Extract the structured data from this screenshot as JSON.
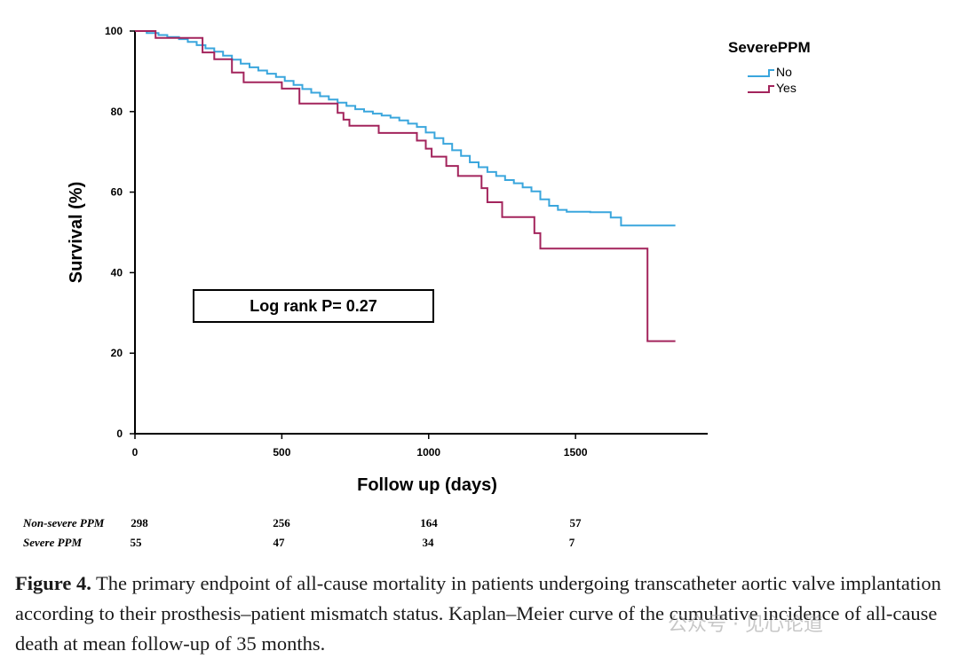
{
  "chart_data": {
    "type": "line",
    "subtype": "kaplan-meier step",
    "xlabel": "Follow up (days)",
    "ylabel": "Survival (%)",
    "xlim": [
      0,
      1950
    ],
    "ylim": [
      0,
      100
    ],
    "xticks": [
      0,
      500,
      1000,
      1500
    ],
    "yticks": [
      0,
      20,
      40,
      60,
      80,
      100
    ],
    "legend": {
      "title": "SeverePPM",
      "placement": "top-right"
    },
    "annotation": "Log rank P= 0.27",
    "series": [
      {
        "name": "No",
        "color": "#3aa6dd",
        "points": [
          [
            0,
            100
          ],
          [
            40,
            99.5
          ],
          [
            80,
            99
          ],
          [
            110,
            98.5
          ],
          [
            150,
            98
          ],
          [
            180,
            97.3
          ],
          [
            210,
            96.5
          ],
          [
            240,
            95.7
          ],
          [
            270,
            94.9
          ],
          [
            300,
            93.9
          ],
          [
            330,
            92.9
          ],
          [
            360,
            91.9
          ],
          [
            390,
            91.0
          ],
          [
            420,
            90.2
          ],
          [
            450,
            89.4
          ],
          [
            480,
            88.6
          ],
          [
            510,
            87.6
          ],
          [
            540,
            86.6
          ],
          [
            570,
            85.6
          ],
          [
            600,
            84.7
          ],
          [
            630,
            83.8
          ],
          [
            660,
            83.0
          ],
          [
            690,
            82.2
          ],
          [
            720,
            81.4
          ],
          [
            750,
            80.6
          ],
          [
            780,
            80.0
          ],
          [
            810,
            79.5
          ],
          [
            840,
            79.0
          ],
          [
            870,
            78.5
          ],
          [
            900,
            77.8
          ],
          [
            930,
            77.0
          ],
          [
            960,
            76.2
          ],
          [
            990,
            74.8
          ],
          [
            1020,
            73.4
          ],
          [
            1050,
            72.0
          ],
          [
            1080,
            70.4
          ],
          [
            1110,
            69.0
          ],
          [
            1140,
            67.4
          ],
          [
            1170,
            66.2
          ],
          [
            1200,
            65.0
          ],
          [
            1230,
            64.0
          ],
          [
            1260,
            63.0
          ],
          [
            1290,
            62.2
          ],
          [
            1320,
            61.2
          ],
          [
            1350,
            60.2
          ],
          [
            1380,
            58.2
          ],
          [
            1410,
            56.6
          ],
          [
            1440,
            55.6
          ],
          [
            1470,
            55.1
          ],
          [
            1550,
            55.0
          ],
          [
            1620,
            53.7
          ],
          [
            1655,
            51.7
          ],
          [
            1840,
            51.7
          ]
        ]
      },
      {
        "name": "Yes",
        "color": "#a3245c",
        "points": [
          [
            0,
            100
          ],
          [
            70,
            98.3
          ],
          [
            230,
            94.7
          ],
          [
            270,
            93.0
          ],
          [
            330,
            89.7
          ],
          [
            370,
            87.3
          ],
          [
            500,
            85.7
          ],
          [
            560,
            82.0
          ],
          [
            690,
            79.7
          ],
          [
            710,
            78.0
          ],
          [
            730,
            76.5
          ],
          [
            830,
            74.7
          ],
          [
            960,
            72.8
          ],
          [
            990,
            70.8
          ],
          [
            1010,
            68.8
          ],
          [
            1060,
            66.5
          ],
          [
            1100,
            64.0
          ],
          [
            1180,
            61.0
          ],
          [
            1200,
            57.5
          ],
          [
            1250,
            53.8
          ],
          [
            1360,
            49.8
          ],
          [
            1380,
            46.0
          ],
          [
            1745,
            23.0
          ],
          [
            1840,
            23.0
          ]
        ]
      }
    ]
  },
  "risk_table": {
    "rows": [
      {
        "label": "Non-severe PPM",
        "values": [
          "298",
          "256",
          "164",
          "57"
        ]
      },
      {
        "label": "Severe PPM",
        "values": [
          "55",
          "47",
          "34",
          "7"
        ]
      }
    ],
    "columns_days": [
      0,
      500,
      1000,
      1500
    ]
  },
  "caption": {
    "label": "Figure 4.",
    "text": "The primary endpoint of all-cause mortality in patients undergoing transcatheter aortic valve implantation according to their prosthesis–patient mismatch status. Kaplan–Meier curve of the cumulative incidence of all-cause death at mean follow-up of 35 months."
  },
  "watermark": "公众号 · 见心论道"
}
